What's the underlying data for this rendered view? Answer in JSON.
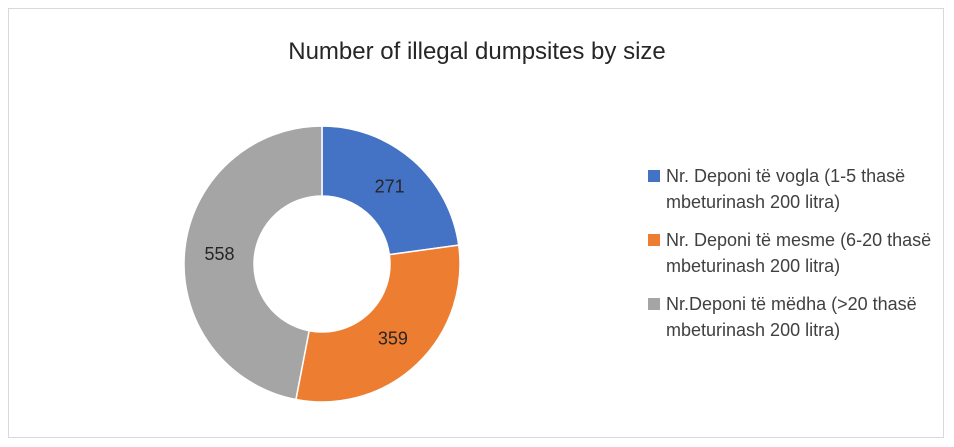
{
  "chart_data": {
    "type": "donut",
    "title": "Number of illegal dumpsites by size",
    "categories": [
      "Nr. Deponi të vogla (1-5 thasë mbeturinash 200 litra)",
      "Nr. Deponi të mesme (6-20 thasë mbeturinash 200 litra)",
      "Nr.Deponi të mëdha (>20 thasë mbeturinash 200 litra)"
    ],
    "values": [
      271,
      359,
      558
    ],
    "value_labels": [
      "271",
      "359",
      "558"
    ],
    "colors": [
      "#4472c4",
      "#ed7d31",
      "#a5a5a5"
    ],
    "legend_position": "right"
  }
}
